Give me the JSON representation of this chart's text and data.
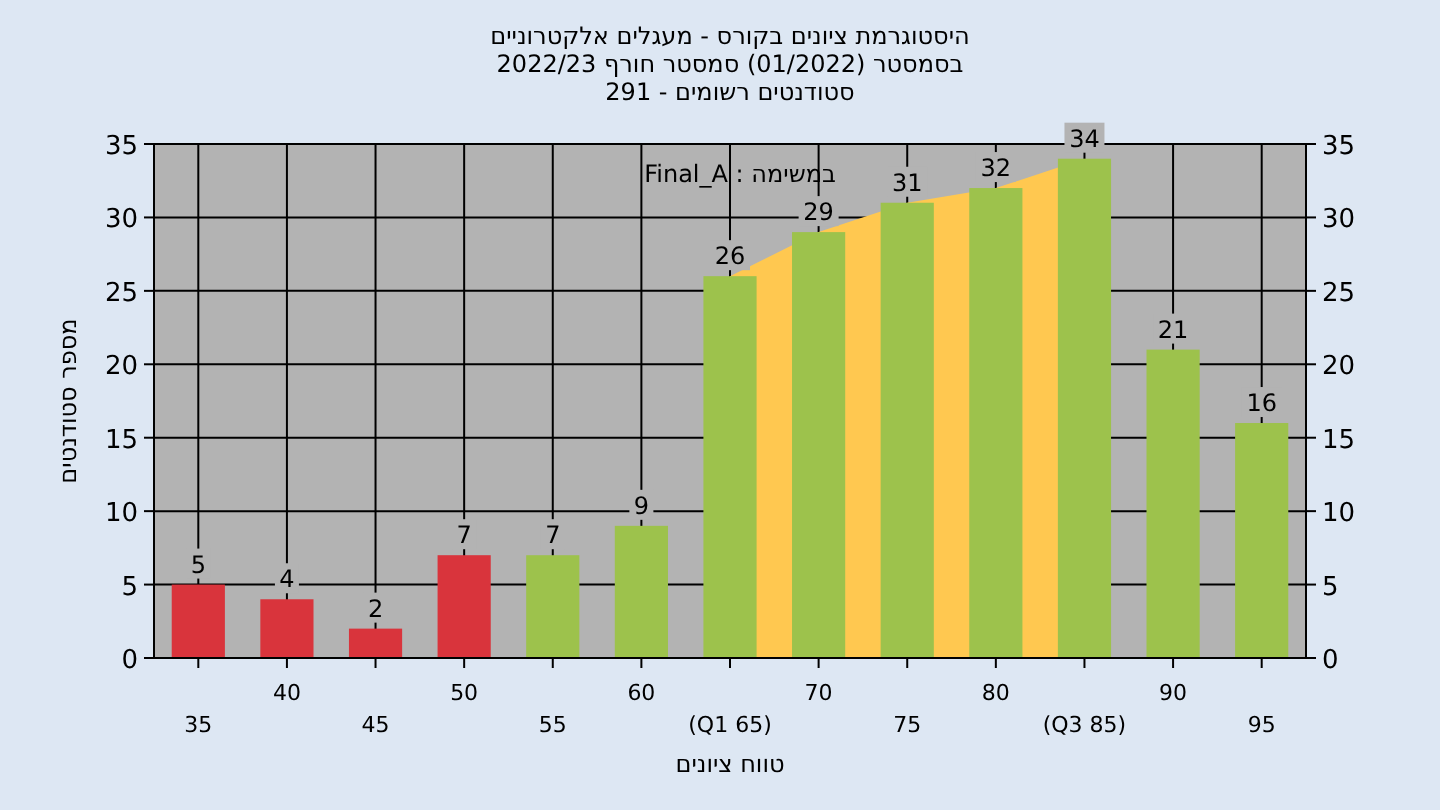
{
  "chart_data": {
    "type": "bar",
    "title": "היסטוגרמת ציונים בקורס - מעגלים אלקטרוניים",
    "subtitle": "בסמסטר (01/2022) סמסטר חורף 2022/23\nסטודנטים רשומים - 291",
    "xlabel": "טווח ציונים",
    "ylabel": "מספר סטודנטים",
    "annotations": [
      "במשימה : Final_A"
    ],
    "categories": [
      "35",
      "40",
      "45",
      "50",
      "55",
      "60",
      "(Q1 65)",
      "70",
      "75",
      "80",
      "(Q3 85)",
      "90",
      "95"
    ],
    "series": [
      {
        "type": "area",
        "color": "#ffc850",
        "values": [
          null,
          null,
          null,
          null,
          null,
          null,
          26,
          29,
          31,
          32,
          34,
          null,
          null
        ]
      },
      {
        "value_labels": [
          "5",
          "4",
          "2",
          "7",
          "7",
          "9",
          "26",
          "29",
          "31",
          "32",
          "34",
          "21",
          "16"
        ],
        "colors": [
          "#d9343c",
          "#d9343c",
          "#d9343c",
          "#d9343c",
          "#9dc24c",
          "#9dc24c",
          "#9dc24c",
          "#9dc24c",
          "#9dc24c",
          "#9dc24c",
          "#9dc24c",
          "#9dc24c",
          "#9dc24c"
        ],
        "values": [
          5,
          4,
          2,
          7,
          7,
          9,
          26,
          29,
          31,
          32,
          34,
          21,
          16
        ]
      }
    ],
    "ylim": [
      0,
      35
    ],
    "yticks": [
      0,
      5,
      10,
      15,
      20,
      25,
      30,
      35
    ],
    "y2lim": [
      0,
      35
    ],
    "y2ticks": [
      0,
      5,
      10,
      15,
      20,
      25,
      30,
      35
    ],
    "grid": true
  }
}
